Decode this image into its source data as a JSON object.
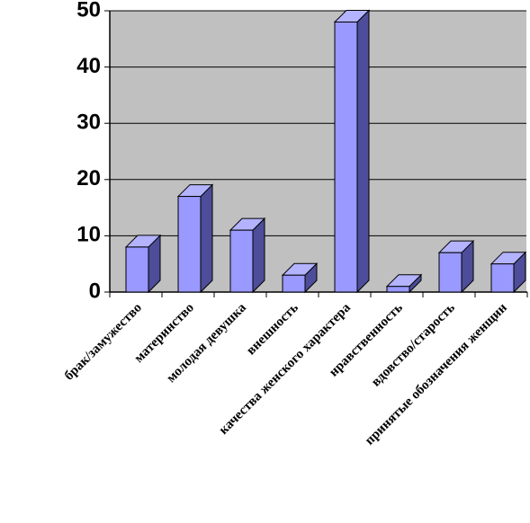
{
  "chart_data": {
    "type": "bar",
    "categories": [
      "брак/замужество",
      "материнство",
      "молодая девушка",
      "внешность",
      "качества женского характера",
      "нравственность",
      "вдовство/старость",
      "принятые обозначения женщин"
    ],
    "values": [
      8,
      17,
      11,
      3,
      48,
      1,
      7,
      5
    ],
    "color": "#9999ff",
    "ylim": [
      0,
      50
    ],
    "yticks": [
      0,
      10,
      20,
      30,
      40,
      50
    ],
    "grid": true
  }
}
